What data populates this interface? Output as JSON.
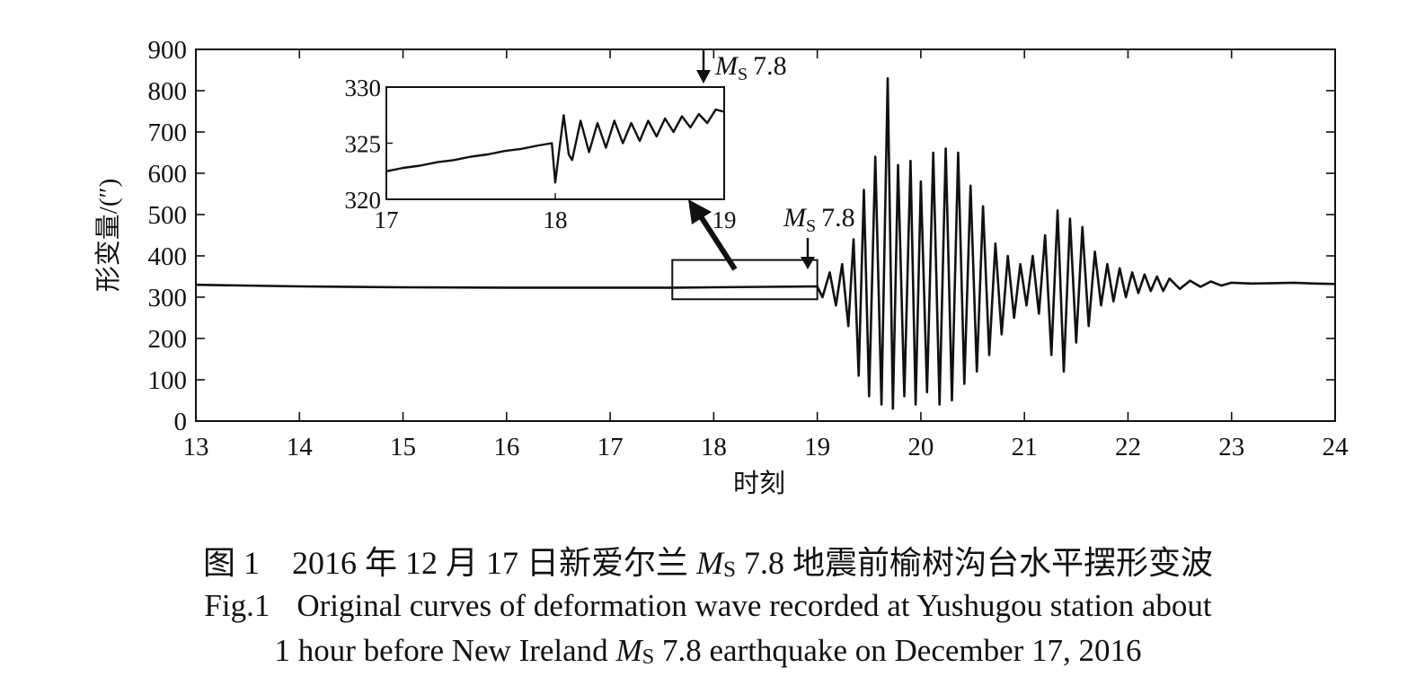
{
  "chart_data": {
    "type": "line",
    "xlabel": "时刻",
    "ylabel": "形变量/(″)",
    "xlim": [
      13,
      24
    ],
    "ylim": [
      0,
      900
    ],
    "xticks": [
      "13",
      "14",
      "15",
      "16",
      "17",
      "18",
      "19",
      "20",
      "21",
      "22",
      "23",
      "24"
    ],
    "yticks": [
      "0",
      "100",
      "200",
      "300",
      "400",
      "500",
      "600",
      "700",
      "800",
      "900"
    ],
    "grid": false,
    "series": [
      {
        "x": [
          13.0,
          14.0,
          15.0,
          16.0,
          17.0,
          17.6,
          18.0,
          18.5,
          19.0,
          19.05,
          19.12,
          19.18,
          19.24,
          19.3,
          19.35,
          19.4,
          19.45,
          19.5,
          19.56,
          19.62,
          19.68,
          19.73,
          19.78,
          19.84,
          19.9,
          19.95,
          20.0,
          20.06,
          20.12,
          20.18,
          20.24,
          20.3,
          20.36,
          20.42,
          20.48,
          20.54,
          20.6,
          20.66,
          20.72,
          20.78,
          20.84,
          20.9,
          20.96,
          21.02,
          21.08,
          21.14,
          21.2,
          21.26,
          21.32,
          21.38,
          21.44,
          21.5,
          21.56,
          21.62,
          21.68,
          21.74,
          21.8,
          21.86,
          21.92,
          21.98,
          22.04,
          22.1,
          22.16,
          22.22,
          22.28,
          22.34,
          22.4,
          22.5,
          22.6,
          22.7,
          22.8,
          22.9,
          23.0,
          23.2,
          23.4,
          23.6,
          23.8,
          24.0
        ],
        "y": [
          330,
          326,
          324,
          323,
          323,
          323,
          324,
          325,
          326,
          300,
          360,
          280,
          380,
          230,
          440,
          110,
          560,
          60,
          640,
          40,
          830,
          30,
          620,
          60,
          630,
          40,
          580,
          70,
          650,
          40,
          660,
          50,
          650,
          90,
          570,
          120,
          520,
          160,
          430,
          210,
          400,
          250,
          380,
          280,
          400,
          260,
          450,
          160,
          510,
          120,
          490,
          190,
          470,
          230,
          410,
          280,
          380,
          290,
          370,
          300,
          360,
          310,
          355,
          315,
          350,
          315,
          345,
          320,
          340,
          325,
          338,
          328,
          335,
          333,
          334,
          335,
          333,
          332
        ]
      }
    ],
    "inset": {
      "xlim": [
        17,
        19
      ],
      "ylim": [
        320,
        330
      ],
      "xticks": [
        "17",
        "18",
        "19"
      ],
      "yticks": [
        "320",
        "325",
        "330"
      ],
      "x": [
        17.0,
        17.1,
        17.2,
        17.3,
        17.4,
        17.5,
        17.6,
        17.7,
        17.8,
        17.9,
        17.98,
        18.0,
        18.02,
        18.05,
        18.08,
        18.1,
        18.15,
        18.2,
        18.25,
        18.3,
        18.35,
        18.4,
        18.45,
        18.5,
        18.55,
        18.6,
        18.65,
        18.7,
        18.75,
        18.8,
        18.85,
        18.9,
        18.95,
        19.0
      ],
      "y": [
        322.5,
        322.8,
        323.0,
        323.3,
        323.5,
        323.8,
        324.0,
        324.3,
        324.5,
        324.8,
        325.0,
        321.5,
        324.0,
        327.5,
        324.0,
        323.5,
        327.0,
        324.2,
        326.8,
        324.6,
        327.0,
        325.0,
        326.8,
        325.2,
        327.0,
        325.6,
        327.2,
        326.0,
        327.4,
        326.4,
        327.6,
        326.8,
        328.0,
        327.8
      ]
    },
    "annotations": {
      "inset_marker": "M",
      "inset_marker_sub": "S",
      "inset_marker_value": "7.8",
      "main_marker": "M",
      "main_marker_sub": "S",
      "main_marker_value": "7.8",
      "main_marker_x": 18.95,
      "inset_marker_x": 18.9
    }
  },
  "caption": {
    "cn_fig": "图 1",
    "cn_pre": "2016 年 12 月 17 日新爱尔兰 ",
    "cn_m": "M",
    "cn_s": "S",
    "cn_post": " 7.8 地震前榆树沟台水平摆形变波",
    "en_fig": "Fig.1",
    "en_line1": "Original curves of deformation wave recorded at Yushugou station about",
    "en_line2_pre": "1 hour before New Ireland ",
    "en_m": "M",
    "en_s": "S",
    "en_line2_post": " 7.8 earthquake on December 17, 2016"
  }
}
